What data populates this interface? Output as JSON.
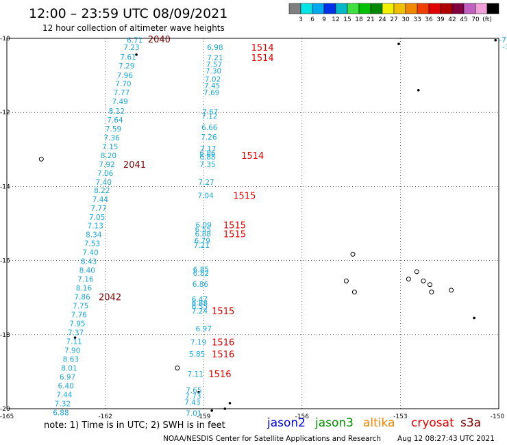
{
  "header": {
    "title": "12:00 – 23:59 UTC 08/09/2021",
    "subtitle": "12 hour collection of altimeter wave heights"
  },
  "colorbar": {
    "colors": [
      "#7f7f7f",
      "#00e5e5",
      "#00a8f0",
      "#0030e8",
      "#00b8c8",
      "#40e040",
      "#00c000",
      "#008800",
      "#f0f000",
      "#f0c000",
      "#f08800",
      "#f04000",
      "#e00000",
      "#b00000",
      "#800040",
      "#c060c0",
      "#f0a0d8",
      "#000000"
    ],
    "labels": [
      "3",
      "6",
      "9",
      "12",
      "15",
      "18",
      "21",
      "24",
      "27",
      "30",
      "33",
      "36",
      "39",
      "42",
      "45",
      "70",
      "(ft)"
    ]
  },
  "axes": {
    "lat_labels": [
      "-10",
      "-12",
      "-14",
      "-16",
      "-18",
      "-20"
    ],
    "lon_labels": [
      "-165",
      "-162",
      "-159",
      "-156",
      "-153",
      "-150"
    ],
    "lat_values": [
      -10,
      -12,
      -14,
      -16,
      -18,
      -20
    ],
    "lon_values": [
      -165,
      -162,
      -159,
      -156,
      -153,
      -150
    ],
    "lat_range": [
      -20,
      -10
    ],
    "lon_range": [
      -165,
      -150
    ]
  },
  "tracks": {
    "color": "#1aa7d8",
    "left": [
      {
        "v": "6.71",
        "lon": -161.1,
        "lat": -10.05
      },
      {
        "v": "7.23",
        "lon": -161.2,
        "lat": -10.24
      },
      {
        "v": "7.61",
        "lon": -161.3,
        "lat": -10.5
      },
      {
        "v": "7.29",
        "lon": -161.35,
        "lat": -10.74
      },
      {
        "v": "7.96",
        "lon": -161.4,
        "lat": -11.0
      },
      {
        "v": "7.70",
        "lon": -161.45,
        "lat": -11.22
      },
      {
        "v": "7.77",
        "lon": -161.5,
        "lat": -11.46
      },
      {
        "v": "7.49",
        "lon": -161.55,
        "lat": -11.7
      },
      {
        "v": "8.12",
        "lon": -161.65,
        "lat": -11.96
      },
      {
        "v": "7.64",
        "lon": -161.7,
        "lat": -12.2
      },
      {
        "v": "7.59",
        "lon": -161.75,
        "lat": -12.44
      },
      {
        "v": "7.36",
        "lon": -161.8,
        "lat": -12.68
      },
      {
        "v": "7.15",
        "lon": -161.85,
        "lat": -12.92
      },
      {
        "v": "8.20",
        "lon": -161.9,
        "lat": -13.16
      },
      {
        "v": "7.92",
        "lon": -161.95,
        "lat": -13.4
      },
      {
        "v": "7.06",
        "lon": -162.0,
        "lat": -13.64
      },
      {
        "v": "7.40",
        "lon": -162.05,
        "lat": -13.88
      },
      {
        "v": "8.22",
        "lon": -162.1,
        "lat": -14.1
      },
      {
        "v": "7.44",
        "lon": -162.15,
        "lat": -14.34
      },
      {
        "v": "7.77",
        "lon": -162.2,
        "lat": -14.58
      },
      {
        "v": "7.05",
        "lon": -162.25,
        "lat": -14.82
      },
      {
        "v": "7.13",
        "lon": -162.3,
        "lat": -15.06
      },
      {
        "v": "8.34",
        "lon": -162.35,
        "lat": -15.3
      },
      {
        "v": "7.53",
        "lon": -162.4,
        "lat": -15.54
      },
      {
        "v": "7.40",
        "lon": -162.45,
        "lat": -15.78
      },
      {
        "v": "8.43",
        "lon": -162.5,
        "lat": -16.02
      },
      {
        "v": "8.40",
        "lon": -162.55,
        "lat": -16.26
      },
      {
        "v": "7.16",
        "lon": -162.6,
        "lat": -16.5
      },
      {
        "v": "8.16",
        "lon": -162.65,
        "lat": -16.74
      },
      {
        "v": "7.86",
        "lon": -162.7,
        "lat": -16.98
      },
      {
        "v": "7.75",
        "lon": -162.75,
        "lat": -17.22
      },
      {
        "v": "7.76",
        "lon": -162.8,
        "lat": -17.46
      },
      {
        "v": "7.95",
        "lon": -162.85,
        "lat": -17.7
      },
      {
        "v": "7.37",
        "lon": -162.9,
        "lat": -17.94
      },
      {
        "v": "7.11",
        "lon": -162.95,
        "lat": -18.18
      },
      {
        "v": "7.90",
        "lon": -163.0,
        "lat": -18.42
      },
      {
        "v": "8.63",
        "lon": -163.05,
        "lat": -18.66
      },
      {
        "v": "8.01",
        "lon": -163.1,
        "lat": -18.9
      },
      {
        "v": "6.97",
        "lon": -163.15,
        "lat": -19.14
      },
      {
        "v": "6.40",
        "lon": -163.2,
        "lat": -19.38
      },
      {
        "v": "7.44",
        "lon": -163.25,
        "lat": -19.62
      },
      {
        "v": "7.32",
        "lon": -163.3,
        "lat": -19.86
      },
      {
        "v": "6.88",
        "lon": -163.35,
        "lat": -20.1
      }
    ],
    "middle": [
      {
        "v": "6.98",
        "lon": -158.65,
        "lat": -10.24
      },
      {
        "v": "7.21",
        "lon": -158.65,
        "lat": -10.52
      },
      {
        "v": "7.57",
        "lon": -158.68,
        "lat": -10.7
      },
      {
        "v": "7.30",
        "lon": -158.7,
        "lat": -10.88
      },
      {
        "v": "7.02",
        "lon": -158.72,
        "lat": -11.1
      },
      {
        "v": "7.45",
        "lon": -158.74,
        "lat": -11.28
      },
      {
        "v": "7.69",
        "lon": -158.76,
        "lat": -11.46
      },
      {
        "v": "7.67",
        "lon": -158.8,
        "lat": -11.98
      },
      {
        "v": "7.12",
        "lon": -158.82,
        "lat": -12.1
      },
      {
        "v": "6.66",
        "lon": -158.82,
        "lat": -12.4
      },
      {
        "v": "7.26",
        "lon": -158.84,
        "lat": -12.66
      },
      {
        "v": "7.17",
        "lon": -158.86,
        "lat": -12.98
      },
      {
        "v": "6.86",
        "lon": -158.88,
        "lat": -13.1
      },
      {
        "v": "6.88",
        "lon": -158.88,
        "lat": -13.2
      },
      {
        "v": "7.35",
        "lon": -158.88,
        "lat": -13.4
      },
      {
        "v": "7.27",
        "lon": -158.92,
        "lat": -13.88
      },
      {
        "v": "7.04",
        "lon": -158.94,
        "lat": -14.24
      },
      {
        "v": "6.09",
        "lon": -159.0,
        "lat": -15.04
      },
      {
        "v": "6.55",
        "lon": -159.02,
        "lat": -15.16
      },
      {
        "v": "6.88",
        "lon": -159.02,
        "lat": -15.28
      },
      {
        "v": "6.79",
        "lon": -159.04,
        "lat": -15.46
      },
      {
        "v": "7.21",
        "lon": -159.06,
        "lat": -15.58
      },
      {
        "v": "6.85",
        "lon": -159.08,
        "lat": -16.24
      },
      {
        "v": "6.82",
        "lon": -159.08,
        "lat": -16.34
      },
      {
        "v": "6.86",
        "lon": -159.1,
        "lat": -16.64
      },
      {
        "v": "6.47",
        "lon": -159.12,
        "lat": -17.04
      },
      {
        "v": "6.88",
        "lon": -159.12,
        "lat": -17.14
      },
      {
        "v": "6.55",
        "lon": -159.12,
        "lat": -17.24
      },
      {
        "v": "7.24",
        "lon": -159.12,
        "lat": -17.36
      },
      {
        "v": "6.97",
        "lon": -159.0,
        "lat": -17.84
      },
      {
        "v": "7.19",
        "lon": -159.16,
        "lat": -18.2
      },
      {
        "v": "5.85",
        "lon": -159.2,
        "lat": -18.52
      },
      {
        "v": "7.11",
        "lon": -159.25,
        "lat": -19.06
      },
      {
        "v": "7.65",
        "lon": -159.3,
        "lat": -19.5
      },
      {
        "v": "7.73",
        "lon": -159.32,
        "lat": -19.66
      },
      {
        "v": "7.43",
        "lon": -159.34,
        "lat": -19.82
      },
      {
        "v": "7.01",
        "lon": -159.3,
        "lat": -20.12
      }
    ]
  },
  "time_labels": [
    {
      "t": "2040",
      "lon": -160.7,
      "lat": -10.02,
      "color": "#7a0000"
    },
    {
      "t": "2041",
      "lon": -161.45,
      "lat": -13.4,
      "color": "#7a0000"
    },
    {
      "t": "2042",
      "lon": -162.2,
      "lat": -16.98,
      "color": "#7a0000"
    },
    {
      "t": "1514",
      "lon": -157.55,
      "lat": -10.24,
      "color": "#e00000"
    },
    {
      "t": "1514",
      "lon": -157.55,
      "lat": -10.52,
      "color": "#e00000"
    },
    {
      "t": "1514",
      "lon": -157.85,
      "lat": -13.16,
      "color": "#e00000"
    },
    {
      "t": "1515",
      "lon": -158.1,
      "lat": -14.24,
      "color": "#e00000"
    },
    {
      "t": "1515",
      "lon": -158.4,
      "lat": -15.04,
      "color": "#e00000"
    },
    {
      "t": "1515",
      "lon": -158.4,
      "lat": -15.28,
      "color": "#e00000"
    },
    {
      "t": "1515",
      "lon": -158.75,
      "lat": -17.36,
      "color": "#e00000"
    },
    {
      "t": "1516",
      "lon": -158.75,
      "lat": -18.2,
      "color": "#e00000"
    },
    {
      "t": "1516",
      "lon": -158.75,
      "lat": -18.52,
      "color": "#e00000"
    },
    {
      "t": "1516",
      "lon": -158.85,
      "lat": -19.06,
      "color": "#e00000"
    }
  ],
  "edge_labels": [
    "-7.",
    "-3"
  ],
  "islands": [
    {
      "lon": -161.05,
      "lat": -10.44,
      "kind": "dot"
    },
    {
      "lon": -163.95,
      "lat": -13.26,
      "kind": "ring"
    },
    {
      "lon": -162.92,
      "lat": -18.08,
      "kind": "dot"
    },
    {
      "lon": -159.8,
      "lat": -18.9,
      "kind": "ring"
    },
    {
      "lon": -159.15,
      "lat": -19.55,
      "kind": "dot"
    },
    {
      "lon": -158.2,
      "lat": -19.85,
      "kind": "dot"
    },
    {
      "lon": -158.75,
      "lat": -20.05,
      "kind": "dot"
    },
    {
      "lon": -158.35,
      "lat": -20.0,
      "kind": "dot"
    },
    {
      "lon": -153.05,
      "lat": -10.15,
      "kind": "dot"
    },
    {
      "lon": -152.45,
      "lat": -11.4,
      "kind": "dot"
    },
    {
      "lon": -150.1,
      "lat": -10.05,
      "kind": "dot"
    },
    {
      "lon": -154.45,
      "lat": -15.83,
      "kind": "ring"
    },
    {
      "lon": -154.65,
      "lat": -16.55,
      "kind": "ring"
    },
    {
      "lon": -154.4,
      "lat": -16.85,
      "kind": "ring"
    },
    {
      "lon": -152.5,
      "lat": -16.3,
      "kind": "ring"
    },
    {
      "lon": -152.75,
      "lat": -16.5,
      "kind": "ring"
    },
    {
      "lon": -152.3,
      "lat": -16.55,
      "kind": "ring"
    },
    {
      "lon": -152.1,
      "lat": -16.65,
      "kind": "ring"
    },
    {
      "lon": -152.05,
      "lat": -16.85,
      "kind": "ring"
    },
    {
      "lon": -151.45,
      "lat": -16.8,
      "kind": "ring"
    },
    {
      "lon": -150.75,
      "lat": -17.55,
      "kind": "dot"
    }
  ],
  "legend": {
    "note": "note: 1) Time is in UTC; 2) SWH is in feet",
    "satellites": [
      {
        "name": "jason2",
        "color": "#0000e0"
      },
      {
        "name": "jason3",
        "color": "#009000"
      },
      {
        "name": "altika",
        "color": "#f08800"
      },
      {
        "name": "cryosat",
        "color": "#e00000"
      },
      {
        "name": "s3a",
        "color": "#7a0000"
      }
    ]
  },
  "footer": {
    "credit": "NOAA/NESDIS Center for Satellite Applications and Research",
    "timestamp": "Aug 12 08:27:43 UTC 2021"
  }
}
